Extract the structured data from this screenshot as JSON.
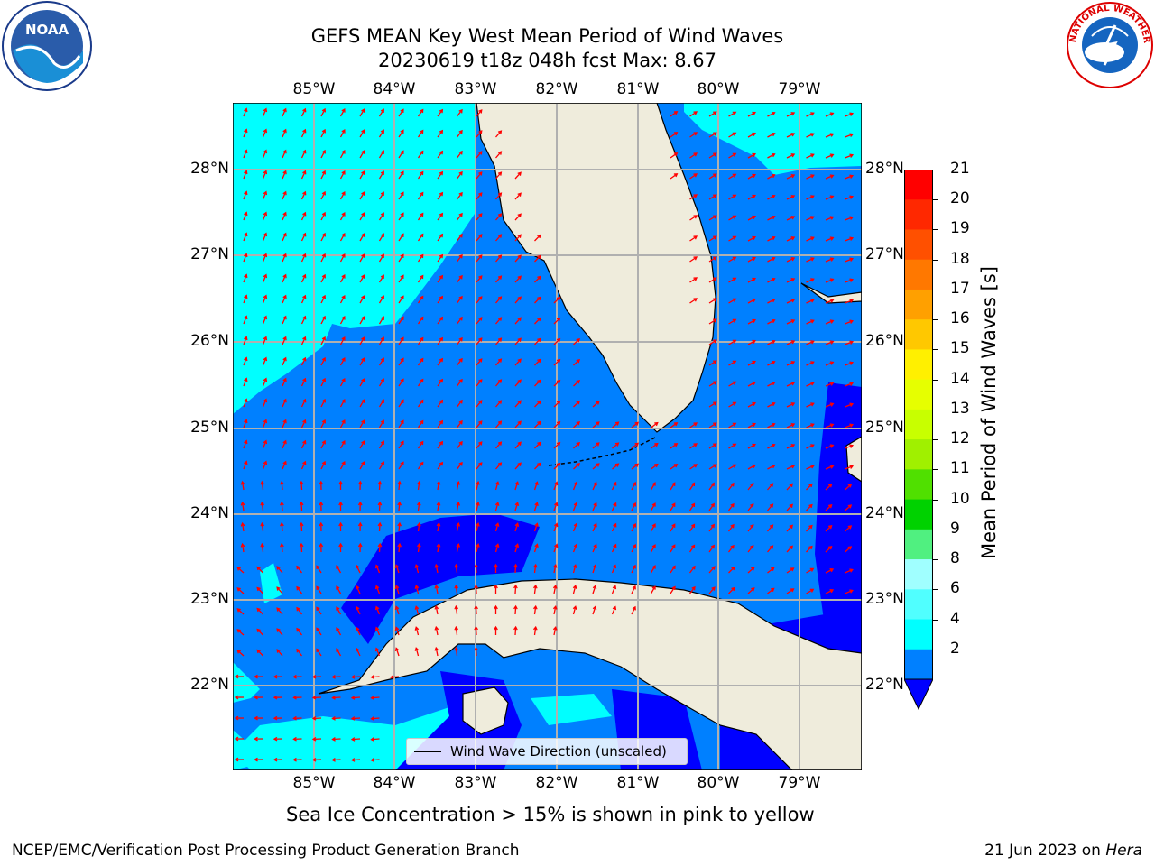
{
  "title_line1": "GEFS MEAN Key West Mean Period of Wind Waves",
  "title_line2": "20230619 t18z 048h fcst   Max: 8.67",
  "lon_labels": [
    "85°W",
    "84°W",
    "83°W",
    "82°W",
    "81°W",
    "80°W",
    "79°W"
  ],
  "lat_labels": [
    "28°N",
    "27°N",
    "26°N",
    "25°N",
    "24°N",
    "23°N",
    "22°N"
  ],
  "colorbar": {
    "label": "Mean Period of Wind Waves [s]",
    "ticks": [
      "21",
      "20",
      "19",
      "18",
      "17",
      "16",
      "15",
      "14",
      "13",
      "12",
      "11",
      "10",
      "9",
      "8",
      "6",
      "4",
      "2"
    ],
    "colors": [
      "#ff0000",
      "#ff2800",
      "#ff5000",
      "#ff7800",
      "#ffa000",
      "#ffc800",
      "#fff000",
      "#e6ff00",
      "#c8ff00",
      "#a0f000",
      "#50e000",
      "#00d200",
      "#50f080",
      "#a0ffff",
      "#50ffff",
      "#00ffff",
      "#0080ff"
    ],
    "under_color": "#0000ff"
  },
  "colors": {
    "land": "#efecdc",
    "sea_cyan": "#00ffff",
    "sea_blue": "#0080ff",
    "sea_dark": "#0000ff",
    "arrow": "#ff0000",
    "grid": "#b0b0b0"
  },
  "legend_label": "Wind Wave Direction (unscaled)",
  "footer_center": "Sea Ice Concentration > 15% is shown in pink to yellow",
  "footer_left": "NCEP/EMC/Verification Post Processing Product Generation Branch",
  "footer_right_prefix": "21 Jun 2023 on ",
  "footer_right_host": "Hera",
  "logo_left_text": "NOAA",
  "logo_right_text": "NATIONAL WEATHER SERVICE"
}
